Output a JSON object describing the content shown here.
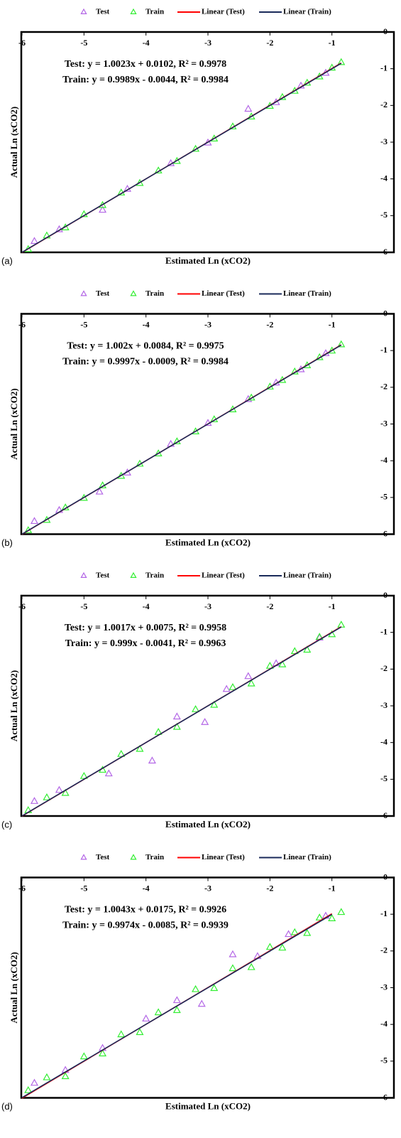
{
  "chart_data": [
    {
      "type": "scatter",
      "panel": "(a)",
      "xlabel": "Estimated Ln (xCO2)",
      "ylabel": "Actual Ln (xCO2)",
      "annotations": [
        "Test: y = 1.0023x + 0.0102, R² = 0.9978",
        "Train: y = 0.9989x - 0.0044, R² = 0.9984"
      ],
      "xlim": [
        -6,
        0
      ],
      "ylim": [
        -6,
        0
      ],
      "xticks": [
        -6,
        -5,
        -4,
        -3,
        -2,
        -1
      ],
      "yticks": [
        0,
        -1,
        -2,
        -3,
        -4,
        -5,
        -6
      ],
      "series": [
        {
          "name": "Test",
          "kind": "scatter",
          "color": "#b366e6",
          "x": [
            -5.8,
            -5.4,
            -4.7,
            -4.3,
            -3.6,
            -3.0,
            -2.35,
            -1.9,
            -1.5,
            -1.1
          ],
          "values": [
            -5.7,
            -5.38,
            -4.85,
            -4.28,
            -3.58,
            -3.02,
            -2.1,
            -1.92,
            -1.47,
            -1.12
          ]
        },
        {
          "name": "Train",
          "kind": "scatter",
          "color": "#33ee33",
          "x": [
            -5.9,
            -5.6,
            -5.3,
            -5.0,
            -4.7,
            -4.4,
            -4.1,
            -3.8,
            -3.5,
            -3.2,
            -2.9,
            -2.6,
            -2.3,
            -2.0,
            -1.8,
            -1.6,
            -1.4,
            -1.2,
            -1.0,
            -0.85
          ],
          "values": [
            -5.92,
            -5.55,
            -5.33,
            -4.97,
            -4.72,
            -4.38,
            -4.12,
            -3.78,
            -3.52,
            -3.19,
            -2.91,
            -2.58,
            -2.31,
            -2.02,
            -1.78,
            -1.61,
            -1.39,
            -1.22,
            -0.98,
            -0.83
          ]
        },
        {
          "name": "Linear (Test)",
          "kind": "line",
          "color": "#ff0000",
          "x": [
            -6,
            -0.85
          ],
          "values": [
            -6.004,
            -0.842
          ]
        },
        {
          "name": "Linear (Train)",
          "kind": "line",
          "color": "#1a2a5a",
          "x": [
            -6,
            -0.85
          ],
          "values": [
            -5.998,
            -0.853
          ]
        }
      ]
    },
    {
      "type": "scatter",
      "panel": "(b)",
      "xlabel": "Estimated Ln (xCO2)",
      "ylabel": "Actual Ln (xCO2)",
      "annotations": [
        "Test: y = 1.002x + 0.0084, R² = 0.9975",
        "Train: y = 0.9997x - 0.0009, R² = 0.9984"
      ],
      "xlim": [
        -6,
        0
      ],
      "ylim": [
        -6,
        0
      ],
      "xticks": [
        -6,
        -5,
        -4,
        -3,
        -2,
        -1
      ],
      "yticks": [
        0,
        -1,
        -2,
        -3,
        -4,
        -5,
        -6
      ],
      "series": [
        {
          "name": "Test",
          "kind": "scatter",
          "color": "#b366e6",
          "x": [
            -5.8,
            -5.4,
            -4.75,
            -4.3,
            -3.6,
            -3.0,
            -2.35,
            -1.9,
            -1.5,
            -1.1
          ],
          "values": [
            -5.65,
            -5.35,
            -4.85,
            -4.33,
            -3.55,
            -2.98,
            -2.33,
            -1.88,
            -1.52,
            -1.08
          ]
        },
        {
          "name": "Train",
          "kind": "scatter",
          "color": "#33ee33",
          "x": [
            -5.9,
            -5.6,
            -5.3,
            -5.0,
            -4.7,
            -4.4,
            -4.1,
            -3.8,
            -3.5,
            -3.2,
            -2.9,
            -2.6,
            -2.3,
            -2.0,
            -1.8,
            -1.6,
            -1.4,
            -1.2,
            -1.0,
            -0.85
          ],
          "values": [
            -5.9,
            -5.62,
            -5.28,
            -5.02,
            -4.68,
            -4.42,
            -4.09,
            -3.81,
            -3.48,
            -3.21,
            -2.88,
            -2.61,
            -2.29,
            -1.99,
            -1.81,
            -1.58,
            -1.41,
            -1.19,
            -1.01,
            -0.84
          ]
        },
        {
          "name": "Linear (Test)",
          "kind": "line",
          "color": "#ff0000",
          "x": [
            -6,
            -0.85
          ],
          "values": [
            -6.004,
            -0.843
          ]
        },
        {
          "name": "Linear (Train)",
          "kind": "line",
          "color": "#1a2a5a",
          "x": [
            -6,
            -0.85
          ],
          "values": [
            -5.999,
            -0.851
          ]
        }
      ]
    },
    {
      "type": "scatter",
      "panel": "(c)",
      "xlabel": "Estimated Ln (xCO2)",
      "ylabel": "Actual Ln (xCO2)",
      "annotations": [
        "Test: y = 1.0017x + 0.0075, R² = 0.9958",
        "Train: y = 0.999x - 0.0041, R² = 0.9963"
      ],
      "xlim": [
        -6,
        0
      ],
      "ylim": [
        -6,
        0
      ],
      "xticks": [
        -6,
        -5,
        -4,
        -3,
        -2,
        -1
      ],
      "yticks": [
        0,
        -1,
        -2,
        -3,
        -4,
        -5,
        -6
      ],
      "series": [
        {
          "name": "Test",
          "kind": "scatter",
          "color": "#b366e6",
          "x": [
            -5.8,
            -5.4,
            -4.6,
            -3.9,
            -3.5,
            -3.05,
            -2.7,
            -2.35,
            -1.9,
            -1.2
          ],
          "values": [
            -5.6,
            -5.3,
            -4.85,
            -4.5,
            -3.3,
            -3.45,
            -2.55,
            -2.2,
            -1.85,
            -1.15
          ]
        },
        {
          "name": "Train",
          "kind": "scatter",
          "color": "#33ee33",
          "x": [
            -5.9,
            -5.6,
            -5.3,
            -5.0,
            -4.7,
            -4.4,
            -4.1,
            -3.8,
            -3.5,
            -3.2,
            -2.9,
            -2.6,
            -2.3,
            -2.0,
            -1.8,
            -1.6,
            -1.4,
            -1.2,
            -1.0,
            -0.85
          ],
          "values": [
            -5.85,
            -5.5,
            -5.38,
            -4.92,
            -4.75,
            -4.32,
            -4.18,
            -3.72,
            -3.58,
            -3.1,
            -2.98,
            -2.5,
            -2.4,
            -1.92,
            -1.88,
            -1.52,
            -1.48,
            -1.13,
            -1.06,
            -0.8
          ]
        },
        {
          "name": "Linear (Test)",
          "kind": "line",
          "color": "#ff0000",
          "x": [
            -6,
            -0.85
          ],
          "values": [
            -6.003,
            -0.844
          ]
        },
        {
          "name": "Linear (Train)",
          "kind": "line",
          "color": "#1a2a5a",
          "x": [
            -6,
            -0.85
          ],
          "values": [
            -5.998,
            -0.853
          ]
        }
      ]
    },
    {
      "type": "scatter",
      "panel": "(d)",
      "xlabel": "Estimated Ln (xCO2)",
      "ylabel": "Actual Ln (xCO2)",
      "annotations": [
        "Test: y = 1.0043x + 0.0175, R² = 0.9926",
        "Train: y = 0.9974x - 0.0085, R² = 0.9939"
      ],
      "xlim": [
        -6,
        0
      ],
      "ylim": [
        -6,
        0
      ],
      "xticks": [
        -6,
        -5,
        -4,
        -3,
        -2,
        -1
      ],
      "yticks": [
        0,
        -1,
        -2,
        -3,
        -4,
        -5,
        -6
      ],
      "series": [
        {
          "name": "Test",
          "kind": "scatter",
          "color": "#b366e6",
          "x": [
            -5.8,
            -5.3,
            -4.7,
            -4.0,
            -3.5,
            -3.1,
            -2.6,
            -2.2,
            -1.7,
            -1.1
          ],
          "values": [
            -5.6,
            -5.25,
            -4.65,
            -3.85,
            -3.35,
            -3.45,
            -2.1,
            -2.15,
            -1.55,
            -1.05
          ]
        },
        {
          "name": "Train",
          "kind": "scatter",
          "color": "#33ee33",
          "x": [
            -5.9,
            -5.6,
            -5.3,
            -5.0,
            -4.7,
            -4.4,
            -4.1,
            -3.8,
            -3.5,
            -3.2,
            -2.9,
            -2.6,
            -2.3,
            -2.0,
            -1.8,
            -1.6,
            -1.4,
            -1.2,
            -1.0,
            -0.85
          ],
          "values": [
            -5.8,
            -5.45,
            -5.42,
            -4.88,
            -4.8,
            -4.28,
            -4.22,
            -3.68,
            -3.62,
            -3.05,
            -3.02,
            -2.48,
            -2.45,
            -1.9,
            -1.92,
            -1.5,
            -1.52,
            -1.1,
            -1.12,
            -0.95
          ]
        },
        {
          "name": "Linear (Test)",
          "kind": "line",
          "color": "#ff0000",
          "x": [
            -6,
            -1.0
          ],
          "values": [
            -6.008,
            -0.987
          ]
        },
        {
          "name": "Linear (Train)",
          "kind": "line",
          "color": "#1a2a5a",
          "x": [
            -6,
            -1.0
          ],
          "values": [
            -5.993,
            -1.006
          ]
        }
      ]
    }
  ]
}
